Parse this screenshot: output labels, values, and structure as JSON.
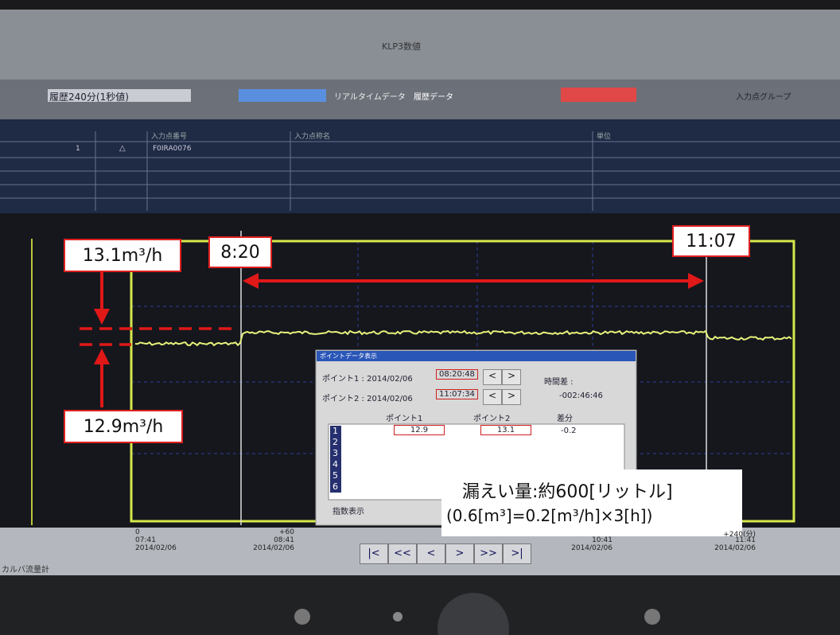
{
  "toolbar": {
    "tab": "KLP3数値",
    "history_select": "履歴240分(1秒値)",
    "realtime": "リアルタイムデータ",
    "history": "履歴データ",
    "group": "入力点グループ"
  },
  "table": {
    "headers": [
      "入力点番号",
      "入力点称名",
      "単位"
    ],
    "rows": [
      {
        "no": "1",
        "symbol": "△",
        "code": "F0IRA0076"
      }
    ]
  },
  "annotations": {
    "upper_value": "13.1m³/h",
    "lower_value": "12.9m³/h",
    "start_time": "8:20",
    "end_time": "11:07",
    "leak_line1": "漏えい量:約600[リットル]",
    "leak_line2": "(0.6[m³]=0.2[m³/h]×3[h])"
  },
  "dialog": {
    "title": "ポイントデータ表示",
    "point1_label": "ポイント1 : 2014/02/06",
    "point1_time": "08:20:48",
    "point2_label": "ポイント2 : 2014/02/06",
    "point2_time": "11:07:34",
    "time_diff_label": "時間差 :",
    "time_diff": "-002:46:46",
    "col_headers": [
      "ポイント1",
      "ポイント2",
      "差分"
    ],
    "row": [
      "12.9",
      "13.1",
      "-0.2"
    ],
    "row_numbers": [
      "1",
      "2",
      "3",
      "4",
      "5",
      "6"
    ],
    "checkbox": "指数表示",
    "step": [
      "<",
      ">"
    ]
  },
  "x_labels": [
    {
      "offset": "0",
      "time": "07:41",
      "date": "2014/02/06"
    },
    {
      "offset": "+60",
      "time": "08:41",
      "date": "2014/02/06"
    },
    {
      "offset": "",
      "time": "10:41",
      "date": "2014/02/06"
    },
    {
      "offset": "+240(分)",
      "time": "11:41",
      "date": "2014/02/06"
    }
  ],
  "nav_buttons": [
    "|<",
    "<<",
    "<",
    ">",
    ">>",
    ">|"
  ],
  "footer": "カルバ流量計"
}
